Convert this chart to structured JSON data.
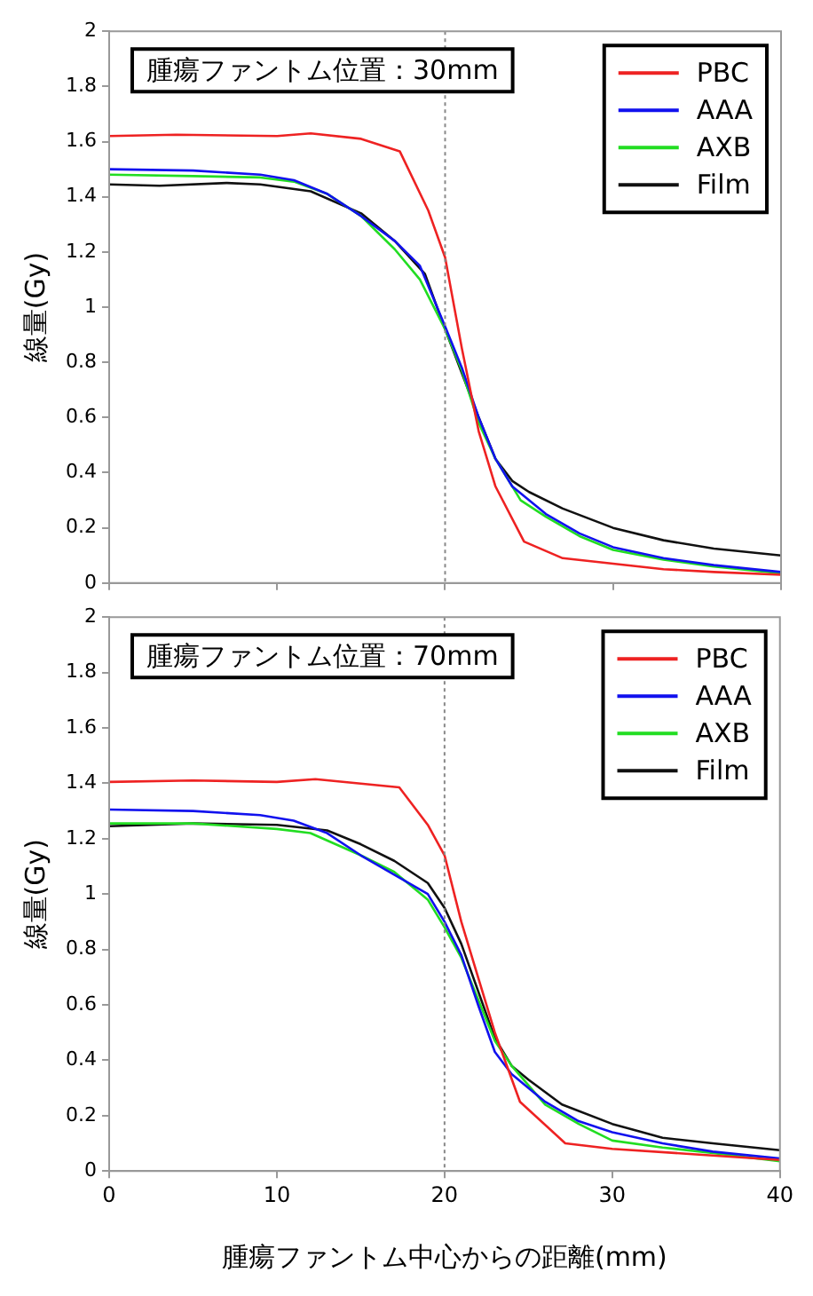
{
  "chart_data": [
    {
      "type": "line",
      "ylabel": "線量(Gy)",
      "annotations": [
        "腫瘍ファントム位置：30mm"
      ],
      "xlim": [
        0,
        40
      ],
      "xticks": [
        0,
        10,
        20,
        30,
        40
      ],
      "ylim": [
        0,
        2
      ],
      "yticks": [
        0,
        0.2,
        0.4,
        0.6,
        0.8,
        1,
        1.2,
        1.4,
        1.6,
        1.8,
        2
      ],
      "tick_labels": "y",
      "legend": "top right",
      "grid": false,
      "ref_lines": [
        {
          "axis": "x",
          "value": 20,
          "color": "#888888",
          "line_style": "dotted"
        }
      ],
      "series": [
        {
          "name": "PBC",
          "color": "#ee2222",
          "x": [
            0,
            4,
            10,
            12,
            15,
            17.3,
            19,
            20,
            21,
            22,
            23,
            24.7,
            27,
            30,
            33,
            36,
            40
          ],
          "values": [
            1.62,
            1.625,
            1.62,
            1.63,
            1.61,
            1.565,
            1.35,
            1.18,
            0.85,
            0.55,
            0.35,
            0.15,
            0.09,
            0.07,
            0.05,
            0.04,
            0.03
          ]
        },
        {
          "name": "AAA",
          "color": "#1111ee",
          "x": [
            0,
            5,
            9,
            11,
            13,
            15,
            17,
            18.5,
            20,
            21,
            22,
            23,
            24,
            26,
            28,
            30,
            33,
            36,
            40
          ],
          "values": [
            1.5,
            1.495,
            1.48,
            1.46,
            1.41,
            1.33,
            1.24,
            1.15,
            0.93,
            0.78,
            0.6,
            0.45,
            0.35,
            0.25,
            0.18,
            0.13,
            0.09,
            0.065,
            0.04
          ]
        },
        {
          "name": "AXB",
          "color": "#22dd22",
          "x": [
            0,
            5,
            9,
            11,
            13,
            15,
            17,
            18.5,
            20,
            21,
            22,
            23,
            24.5,
            26,
            28,
            30,
            33,
            36,
            40
          ],
          "values": [
            1.48,
            1.475,
            1.47,
            1.455,
            1.41,
            1.33,
            1.21,
            1.1,
            0.92,
            0.77,
            0.58,
            0.45,
            0.3,
            0.24,
            0.17,
            0.12,
            0.085,
            0.06,
            0.035
          ]
        },
        {
          "name": "Film",
          "color": "#111111",
          "x": [
            0,
            3,
            7,
            9,
            12,
            15,
            17,
            18.8,
            20,
            22,
            23,
            24,
            25,
            27,
            30,
            33,
            36,
            40
          ],
          "values": [
            1.445,
            1.44,
            1.45,
            1.445,
            1.42,
            1.34,
            1.24,
            1.12,
            0.92,
            0.6,
            0.45,
            0.37,
            0.33,
            0.27,
            0.2,
            0.155,
            0.125,
            0.1
          ]
        }
      ]
    },
    {
      "type": "line",
      "ylabel": "線量(Gy)",
      "xlabel": "腫瘍ファントム中心からの距離(mm)",
      "annotations": [
        "腫瘍ファントム位置：70mm"
      ],
      "xlim": [
        0,
        40
      ],
      "xticks": [
        0,
        10,
        20,
        30,
        40
      ],
      "ylim": [
        0,
        2
      ],
      "yticks": [
        0,
        0.2,
        0.4,
        0.6,
        0.8,
        1,
        1.2,
        1.4,
        1.6,
        1.8,
        2
      ],
      "legend": "top right",
      "grid": false,
      "ref_lines": [
        {
          "axis": "x",
          "value": 20,
          "color": "#888888",
          "line_style": "dotted"
        }
      ],
      "series": [
        {
          "name": "PBC",
          "color": "#ee2222",
          "x": [
            0,
            5,
            10,
            12.3,
            17.3,
            19,
            20,
            21,
            22,
            23,
            24.5,
            27.2,
            30,
            35,
            40
          ],
          "values": [
            1.405,
            1.41,
            1.405,
            1.415,
            1.385,
            1.25,
            1.14,
            0.9,
            0.7,
            0.5,
            0.25,
            0.1,
            0.08,
            0.06,
            0.04
          ]
        },
        {
          "name": "AAA",
          "color": "#1111ee",
          "x": [
            0,
            5,
            9,
            11,
            13,
            15,
            17,
            19,
            20,
            21,
            22,
            23,
            24,
            26,
            28,
            30,
            33,
            36,
            40
          ],
          "values": [
            1.305,
            1.3,
            1.285,
            1.265,
            1.22,
            1.14,
            1.07,
            1.0,
            0.9,
            0.78,
            0.6,
            0.43,
            0.35,
            0.25,
            0.18,
            0.14,
            0.1,
            0.07,
            0.045
          ]
        },
        {
          "name": "AXB",
          "color": "#22dd22",
          "x": [
            0,
            5,
            10,
            12,
            15,
            17,
            19,
            20,
            21,
            22,
            23,
            24,
            26,
            28,
            30,
            33,
            36,
            40
          ],
          "values": [
            1.255,
            1.255,
            1.235,
            1.22,
            1.14,
            1.08,
            0.98,
            0.88,
            0.77,
            0.62,
            0.47,
            0.38,
            0.24,
            0.17,
            0.11,
            0.085,
            0.065,
            0.035
          ]
        },
        {
          "name": "Film",
          "color": "#111111",
          "x": [
            0,
            5,
            10,
            13,
            15,
            17,
            19,
            20,
            21,
            22,
            23,
            24,
            25,
            27,
            30,
            33,
            36,
            40
          ],
          "values": [
            1.245,
            1.255,
            1.25,
            1.23,
            1.18,
            1.12,
            1.04,
            0.95,
            0.82,
            0.65,
            0.48,
            0.38,
            0.33,
            0.24,
            0.17,
            0.12,
            0.1,
            0.075
          ]
        }
      ]
    }
  ]
}
